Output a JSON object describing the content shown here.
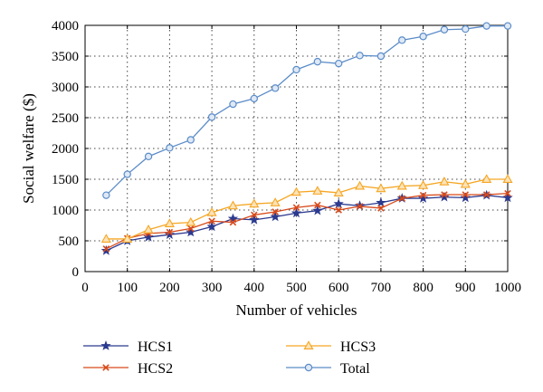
{
  "chart_data": {
    "type": "line",
    "title": "",
    "xlabel": "Number of vehicles",
    "ylabel": "Social welfare ($)",
    "xlim": [
      0,
      1000
    ],
    "ylim": [
      0,
      4000
    ],
    "x_ticks": [
      "0",
      "100",
      "200",
      "300",
      "400",
      "500",
      "600",
      "700",
      "800",
      "900",
      "1000"
    ],
    "y_ticks": [
      "0",
      "500",
      "1000",
      "1500",
      "2000",
      "2500",
      "3000",
      "3500",
      "4000"
    ],
    "grid": true,
    "legend_position": "bottom",
    "x": [
      50,
      100,
      150,
      200,
      250,
      300,
      350,
      400,
      450,
      500,
      550,
      600,
      650,
      700,
      750,
      800,
      850,
      900,
      950,
      1000
    ],
    "series": [
      {
        "name": "HCS1",
        "marker": "star",
        "color": "#2b3a8f",
        "values": [
          340,
          500,
          560,
          600,
          640,
          730,
          860,
          840,
          890,
          950,
          990,
          1100,
          1070,
          1120,
          1190,
          1190,
          1210,
          1200,
          1240,
          1200
        ]
      },
      {
        "name": "HCS2",
        "marker": "x",
        "color": "#d84a1b",
        "values": [
          370,
          540,
          620,
          640,
          700,
          820,
          800,
          920,
          970,
          1040,
          1080,
          1000,
          1060,
          1030,
          1190,
          1240,
          1250,
          1250,
          1250,
          1270
        ]
      },
      {
        "name": "HCS3",
        "marker": "triangle",
        "color": "#f5a623",
        "values": [
          530,
          530,
          680,
          780,
          800,
          960,
          1070,
          1100,
          1120,
          1290,
          1310,
          1280,
          1390,
          1350,
          1390,
          1400,
          1460,
          1420,
          1500,
          1500
        ]
      },
      {
        "name": "Total",
        "marker": "circle",
        "color": "#5b8cc8",
        "values": [
          1240,
          1580,
          1870,
          2010,
          2140,
          2510,
          2720,
          2810,
          2980,
          3280,
          3410,
          3380,
          3510,
          3500,
          3760,
          3820,
          3930,
          3940,
          3990,
          3990
        ]
      }
    ]
  }
}
